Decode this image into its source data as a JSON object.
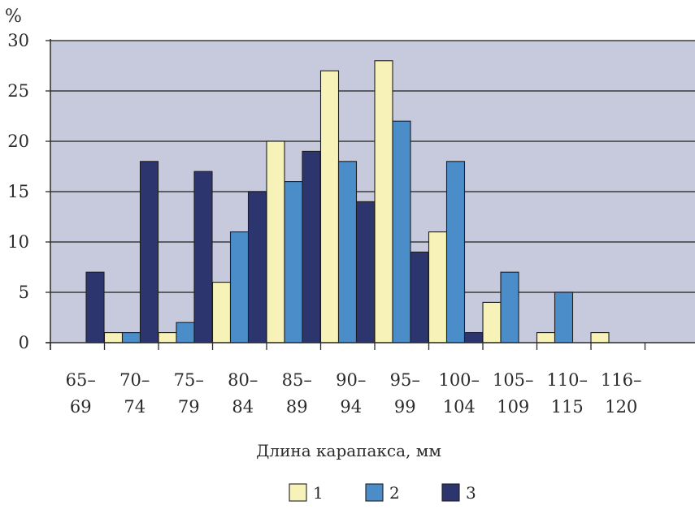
{
  "chart_data": {
    "type": "bar",
    "title": "",
    "ylabel_unit": "%",
    "xlabel": "Длина карапакса, мм",
    "ylim": [
      0,
      30
    ],
    "yticks": [
      "0",
      "5",
      "10",
      "15",
      "20",
      "25",
      "30"
    ],
    "grid": true,
    "legend_position": "bottom",
    "categories": [
      [
        "65–",
        "69"
      ],
      [
        "70–",
        "74"
      ],
      [
        "75–",
        "79"
      ],
      [
        "80–",
        "84"
      ],
      [
        "85–",
        "89"
      ],
      [
        "90–",
        "94"
      ],
      [
        "95–",
        "99"
      ],
      [
        "100–",
        "104"
      ],
      [
        "105–",
        "109"
      ],
      [
        "110–",
        "115"
      ],
      [
        "116–",
        "120"
      ]
    ],
    "series": [
      {
        "name": "1",
        "color": "#f7f3b8",
        "values": [
          0,
          1,
          1,
          6,
          20,
          27,
          28,
          11,
          4,
          1,
          1
        ]
      },
      {
        "name": "2",
        "color": "#4a8dc9",
        "values": [
          0,
          1,
          2,
          11,
          16,
          18,
          22,
          18,
          7,
          5,
          0
        ]
      },
      {
        "name": "3",
        "color": "#2d356f",
        "values": [
          7,
          18,
          17,
          15,
          19,
          14,
          9,
          1,
          0,
          0,
          0
        ]
      }
    ],
    "plot_background": "#c7c9dc"
  }
}
